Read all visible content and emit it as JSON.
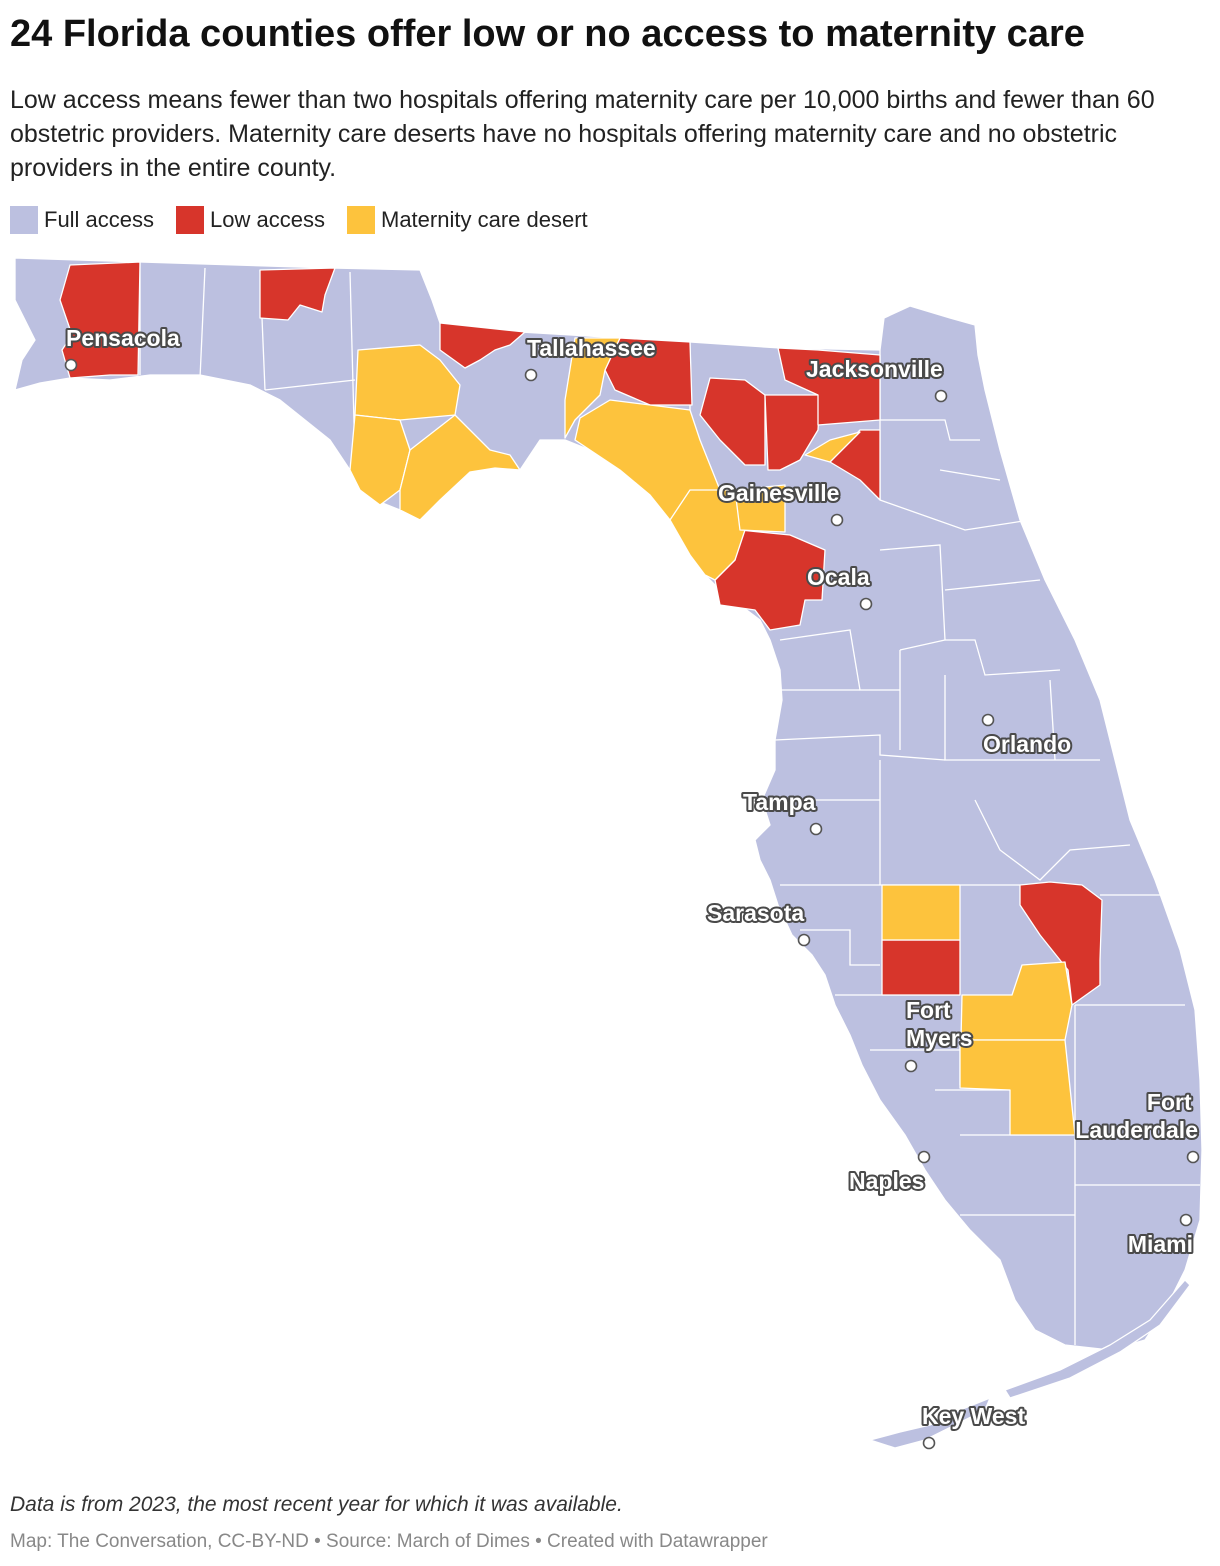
{
  "title": "24 Florida counties offer low or no access to maternity care",
  "description": "Low access means fewer than two hospitals offering maternity care per 10,000 births and fewer than 60 obstetric providers. Maternity care deserts have no hospitals offering maternity care and no obstetric providers in the entire county.",
  "legend": [
    {
      "label": "Full access",
      "color": "#bcc0e0"
    },
    {
      "label": "Low access",
      "color": "#d7352b"
    },
    {
      "label": "Maternity care desert",
      "color": "#fdc33d"
    }
  ],
  "cities": [
    {
      "name": "Pensacola"
    },
    {
      "name": "Tallahassee"
    },
    {
      "name": "Jacksonville"
    },
    {
      "name": "Gainesville"
    },
    {
      "name": "Ocala"
    },
    {
      "name": "Orlando"
    },
    {
      "name": "Tampa"
    },
    {
      "name": "Sarasota"
    },
    {
      "name": "Fort Myers"
    },
    {
      "name": "Fort Lauderdale"
    },
    {
      "name": "Naples"
    },
    {
      "name": "Miami"
    },
    {
      "name": "Key West"
    }
  ],
  "footer": {
    "note": "Data is from 2023, the most recent year for which it was available.",
    "credit": "Map: The Conversation, CC-BY-ND • Source: March of Dimes • Created with Datawrapper"
  }
}
